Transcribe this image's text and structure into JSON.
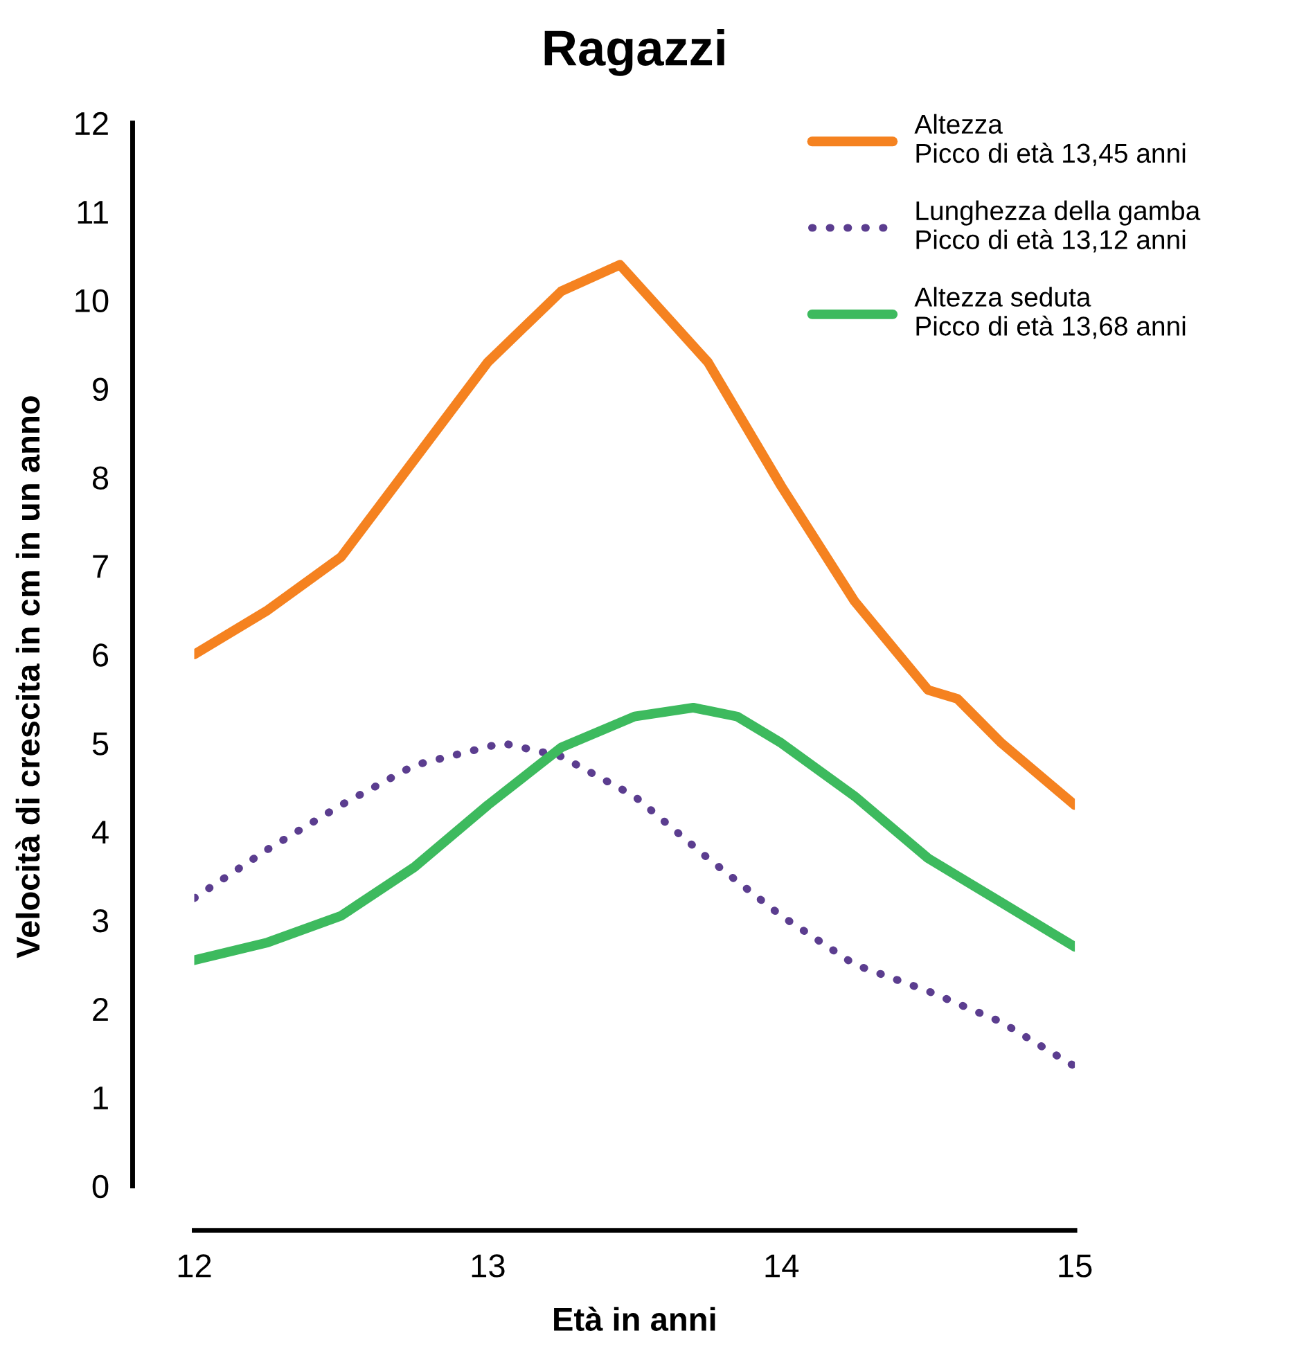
{
  "chart_data": {
    "type": "line",
    "title": "Ragazzi",
    "xlabel": "Età in anni",
    "ylabel": "Velocità di crescita in cm in un anno",
    "xlim": [
      12,
      15
    ],
    "xticks": [
      12,
      13,
      14,
      15
    ],
    "ylim": [
      -0.5,
      12
    ],
    "yticks": [
      0,
      1,
      2,
      3,
      4,
      5,
      6,
      7,
      8,
      9,
      10,
      11,
      12
    ],
    "grid": false,
    "legend": "top right",
    "marker": "none",
    "series": [
      {
        "name": "Altezza\nPicco di età 13,45 anni",
        "color": "#f58220",
        "line_style": "solid",
        "x": [
          12,
          12.25,
          12.5,
          12.75,
          13,
          13.25,
          13.45,
          13.75,
          14,
          14.25,
          14.5,
          14.6,
          14.75,
          15
        ],
        "values": [
          6.0,
          6.5,
          7.1,
          8.2,
          9.3,
          10.1,
          10.4,
          9.3,
          7.9,
          6.6,
          5.6,
          5.5,
          5.0,
          4.3
        ]
      },
      {
        "name": "Lunghezza della gamba\nPicco di età 13,12 anni",
        "color": "#5b3d8f",
        "line_style": "dotted",
        "x": [
          12,
          12.25,
          12.5,
          12.75,
          13.05,
          13.25,
          13.5,
          13.75,
          14,
          14.25,
          14.5,
          14.75,
          15
        ],
        "values": [
          3.25,
          3.8,
          4.3,
          4.75,
          5.0,
          4.85,
          4.4,
          3.7,
          3.05,
          2.5,
          2.2,
          1.85,
          1.35
        ]
      },
      {
        "name": "Altezza seduta\nPicco di età 13,68 anni",
        "color": "#3dba5e",
        "line_style": "solid",
        "x": [
          12,
          12.25,
          12.5,
          12.75,
          13,
          13.25,
          13.5,
          13.7,
          13.85,
          14,
          14.25,
          14.5,
          14.75,
          15
        ],
        "values": [
          2.55,
          2.75,
          3.05,
          3.6,
          4.3,
          4.95,
          5.3,
          5.4,
          5.3,
          5.0,
          4.4,
          3.7,
          3.2,
          2.7
        ]
      }
    ]
  }
}
